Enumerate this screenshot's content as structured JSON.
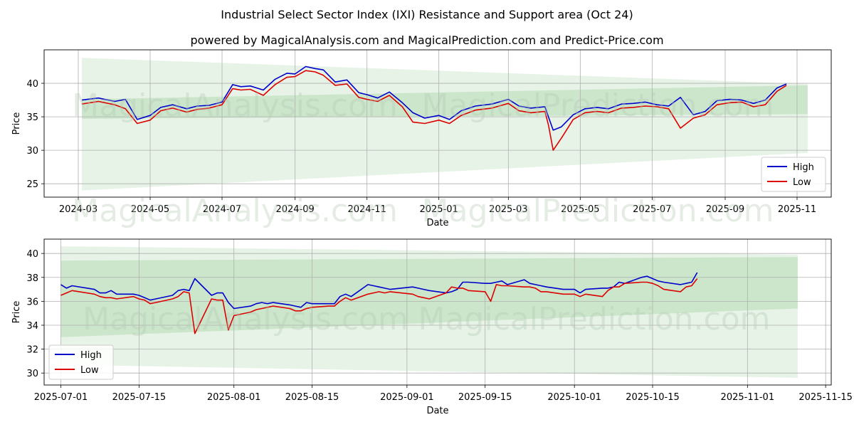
{
  "title": "Industrial Select Sector Index (IXI) Resistance and Support area (Oct 24)",
  "subtitle": "powered by MagicalAnalysis.com and MagicalPrediction.com and Predict-Price.com",
  "watermarks": [
    "MagicalAnalysis.com",
    "MagicalPrediction.com"
  ],
  "colors": {
    "high": "#0000cc",
    "low": "#dd0000",
    "band": "#2e9e2e"
  },
  "chart_data": [
    {
      "type": "line",
      "xlabel": "Date",
      "ylabel": "Price",
      "x_axis": "date",
      "xlim": [
        "2024-02-01",
        "2025-11-30"
      ],
      "ylim": [
        23,
        45
      ],
      "xticks": [
        "2024-03-01",
        "2024-05-01",
        "2024-07-01",
        "2024-09-01",
        "2024-11-01",
        "2025-01-01",
        "2025-03-01",
        "2025-05-01",
        "2025-07-01",
        "2025-09-01",
        "2025-11-01"
      ],
      "xtick_labels": [
        "2024-03",
        "2024-05",
        "2024-07",
        "2024-09",
        "2024-11",
        "2025-01",
        "2025-03",
        "2025-05",
        "2025-07",
        "2025-09",
        "2025-11"
      ],
      "yticks": [
        25,
        30,
        35,
        40
      ],
      "grid": true,
      "legend": "lower-right",
      "bands": [
        {
          "x": [
            "2024-03-04",
            "2025-11-10"
          ],
          "upper": [
            43.8,
            39.9
          ],
          "lower": [
            24.0,
            29.6
          ]
        },
        {
          "x": [
            "2024-03-04",
            "2025-11-10"
          ],
          "upper": [
            37.6,
            39.7
          ],
          "lower": [
            34.7,
            35.4
          ]
        }
      ],
      "series": [
        {
          "name": "High",
          "x": [
            "2024-03-04",
            "2024-03-18",
            "2024-04-01",
            "2024-04-10",
            "2024-04-20",
            "2024-05-01",
            "2024-05-10",
            "2024-05-20",
            "2024-06-01",
            "2024-06-10",
            "2024-06-20",
            "2024-07-01",
            "2024-07-10",
            "2024-07-17",
            "2024-07-25",
            "2024-08-05",
            "2024-08-15",
            "2024-08-25",
            "2024-09-01",
            "2024-09-10",
            "2024-09-18",
            "2024-09-25",
            "2024-10-05",
            "2024-10-15",
            "2024-10-25",
            "2024-11-01",
            "2024-11-10",
            "2024-11-20",
            "2024-12-01",
            "2024-12-10",
            "2024-12-20",
            "2025-01-01",
            "2025-01-10",
            "2025-01-20",
            "2025-02-01",
            "2025-02-15",
            "2025-03-01",
            "2025-03-10",
            "2025-03-20",
            "2025-04-01",
            "2025-04-04",
            "2025-04-08",
            "2025-04-15",
            "2025-04-25",
            "2025-05-05",
            "2025-05-15",
            "2025-05-25",
            "2025-06-05",
            "2025-06-15",
            "2025-06-25",
            "2025-07-05",
            "2025-07-15",
            "2025-07-25",
            "2025-08-05",
            "2025-08-15",
            "2025-08-25",
            "2025-09-05",
            "2025-09-15",
            "2025-09-25",
            "2025-10-05",
            "2025-10-15",
            "2025-10-23"
          ],
          "values": [
            37.5,
            37.8,
            37.3,
            37.6,
            34.6,
            35.2,
            36.4,
            36.8,
            36.2,
            36.6,
            36.7,
            37.2,
            39.8,
            39.5,
            39.6,
            39.0,
            40.6,
            41.5,
            41.4,
            42.5,
            42.2,
            42.0,
            40.2,
            40.5,
            38.6,
            38.3,
            37.8,
            38.7,
            37.1,
            35.6,
            34.8,
            35.2,
            34.6,
            35.9,
            36.6,
            36.9,
            37.6,
            36.6,
            36.3,
            36.5,
            35.0,
            33.0,
            33.5,
            35.3,
            36.2,
            36.4,
            36.2,
            36.9,
            37.0,
            37.2,
            36.8,
            36.6,
            37.9,
            35.3,
            35.8,
            37.4,
            37.6,
            37.5,
            37.0,
            37.5,
            39.3,
            39.9
          ]
        },
        {
          "name": "Low",
          "x": [
            "2024-03-04",
            "2024-03-18",
            "2024-04-01",
            "2024-04-10",
            "2024-04-20",
            "2024-05-01",
            "2024-05-10",
            "2024-05-20",
            "2024-06-01",
            "2024-06-10",
            "2024-06-20",
            "2024-07-01",
            "2024-07-10",
            "2024-07-17",
            "2024-07-25",
            "2024-08-05",
            "2024-08-15",
            "2024-08-25",
            "2024-09-01",
            "2024-09-10",
            "2024-09-18",
            "2024-09-25",
            "2024-10-05",
            "2024-10-15",
            "2024-10-25",
            "2024-11-01",
            "2024-11-10",
            "2024-11-20",
            "2024-12-01",
            "2024-12-10",
            "2024-12-20",
            "2025-01-01",
            "2025-01-10",
            "2025-01-20",
            "2025-02-01",
            "2025-02-15",
            "2025-03-01",
            "2025-03-10",
            "2025-03-20",
            "2025-04-01",
            "2025-04-04",
            "2025-04-08",
            "2025-04-15",
            "2025-04-25",
            "2025-05-05",
            "2025-05-15",
            "2025-05-25",
            "2025-06-05",
            "2025-06-15",
            "2025-06-25",
            "2025-07-05",
            "2025-07-15",
            "2025-07-25",
            "2025-08-05",
            "2025-08-15",
            "2025-08-25",
            "2025-09-05",
            "2025-09-15",
            "2025-09-25",
            "2025-10-05",
            "2025-10-15",
            "2025-10-23"
          ],
          "values": [
            36.9,
            37.3,
            36.8,
            36.2,
            34.0,
            34.5,
            35.9,
            36.3,
            35.7,
            36.1,
            36.3,
            36.8,
            39.2,
            39.0,
            39.1,
            38.2,
            39.8,
            40.9,
            41.0,
            41.9,
            41.7,
            41.2,
            39.7,
            39.9,
            37.9,
            37.6,
            37.3,
            38.2,
            36.5,
            34.2,
            34.0,
            34.5,
            34.0,
            35.2,
            36.0,
            36.3,
            37.0,
            35.9,
            35.6,
            35.8,
            33.8,
            30.0,
            31.8,
            34.6,
            35.6,
            35.8,
            35.6,
            36.3,
            36.4,
            36.6,
            36.5,
            36.2,
            33.3,
            34.8,
            35.3,
            36.8,
            37.1,
            37.2,
            36.5,
            36.8,
            38.8,
            39.7
          ]
        }
      ]
    },
    {
      "type": "line",
      "xlabel": "Date",
      "ylabel": "Price",
      "x_axis": "date",
      "xlim": [
        "2025-06-28",
        "2025-11-16"
      ],
      "ylim": [
        29.0,
        41.2
      ],
      "xticks": [
        "2025-07-01",
        "2025-07-15",
        "2025-08-01",
        "2025-08-15",
        "2025-09-01",
        "2025-09-15",
        "2025-10-01",
        "2025-10-15",
        "2025-11-01",
        "2025-11-15"
      ],
      "xtick_labels": [
        "2025-07-01",
        "2025-07-15",
        "2025-08-01",
        "2025-08-15",
        "2025-09-01",
        "2025-09-15",
        "2025-10-01",
        "2025-10-15",
        "2025-11-01",
        "2025-11-15"
      ],
      "yticks": [
        30,
        32,
        34,
        36,
        38,
        40
      ],
      "grid": true,
      "legend": "lower-left",
      "bands": [
        {
          "x": [
            "2025-07-01",
            "2025-11-10"
          ],
          "upper": [
            40.6,
            39.9
          ],
          "lower": [
            30.7,
            29.6
          ]
        },
        {
          "x": [
            "2025-07-01",
            "2025-11-10"
          ],
          "upper": [
            39.4,
            39.7
          ],
          "lower": [
            33.0,
            35.4
          ]
        }
      ],
      "series": [
        {
          "name": "High",
          "x": [
            "2025-07-01",
            "2025-07-02",
            "2025-07-03",
            "2025-07-07",
            "2025-07-08",
            "2025-07-09",
            "2025-07-10",
            "2025-07-11",
            "2025-07-14",
            "2025-07-15",
            "2025-07-16",
            "2025-07-17",
            "2025-07-18",
            "2025-07-21",
            "2025-07-22",
            "2025-07-23",
            "2025-07-24",
            "2025-07-25",
            "2025-07-28",
            "2025-07-29",
            "2025-07-30",
            "2025-07-31",
            "2025-08-01",
            "2025-08-04",
            "2025-08-05",
            "2025-08-06",
            "2025-08-07",
            "2025-08-08",
            "2025-08-11",
            "2025-08-12",
            "2025-08-13",
            "2025-08-14",
            "2025-08-15",
            "2025-08-18",
            "2025-08-19",
            "2025-08-20",
            "2025-08-21",
            "2025-08-22",
            "2025-08-25",
            "2025-08-26",
            "2025-08-27",
            "2025-08-28",
            "2025-08-29",
            "2025-09-02",
            "2025-09-03",
            "2025-09-04",
            "2025-09-05",
            "2025-09-08",
            "2025-09-09",
            "2025-09-10",
            "2025-09-11",
            "2025-09-12",
            "2025-09-15",
            "2025-09-16",
            "2025-09-17",
            "2025-09-18",
            "2025-09-19",
            "2025-09-22",
            "2025-09-23",
            "2025-09-24",
            "2025-09-25",
            "2025-09-26",
            "2025-09-29",
            "2025-09-30",
            "2025-10-01",
            "2025-10-02",
            "2025-10-03",
            "2025-10-06",
            "2025-10-07",
            "2025-10-08",
            "2025-10-09",
            "2025-10-10",
            "2025-10-13",
            "2025-10-14",
            "2025-10-15",
            "2025-10-16",
            "2025-10-17",
            "2025-10-20",
            "2025-10-21",
            "2025-10-22",
            "2025-10-23"
          ],
          "values": [
            37.4,
            37.1,
            37.3,
            37.0,
            36.7,
            36.7,
            36.9,
            36.6,
            36.6,
            36.5,
            36.3,
            36.1,
            36.2,
            36.5,
            36.9,
            37.0,
            36.9,
            37.9,
            36.5,
            36.7,
            36.7,
            35.9,
            35.4,
            35.6,
            35.8,
            35.9,
            35.8,
            35.9,
            35.7,
            35.6,
            35.5,
            35.9,
            35.8,
            35.8,
            35.8,
            36.4,
            36.6,
            36.4,
            37.4,
            37.3,
            37.2,
            37.1,
            37.0,
            37.2,
            37.1,
            37.0,
            36.9,
            36.7,
            36.8,
            37.0,
            37.6,
            37.6,
            37.5,
            37.5,
            37.6,
            37.7,
            37.4,
            37.8,
            37.5,
            37.4,
            37.3,
            37.2,
            37.0,
            37.0,
            37.0,
            36.7,
            37.0,
            37.1,
            37.1,
            37.2,
            37.6,
            37.5,
            38.0,
            38.1,
            37.9,
            37.7,
            37.6,
            37.4,
            37.5,
            37.6,
            38.4
          ]
        },
        {
          "name": "Low",
          "x": [
            "2025-07-01",
            "2025-07-02",
            "2025-07-03",
            "2025-07-07",
            "2025-07-08",
            "2025-07-09",
            "2025-07-10",
            "2025-07-11",
            "2025-07-14",
            "2025-07-15",
            "2025-07-16",
            "2025-07-17",
            "2025-07-18",
            "2025-07-21",
            "2025-07-22",
            "2025-07-23",
            "2025-07-24",
            "2025-07-25",
            "2025-07-28",
            "2025-07-29",
            "2025-07-30",
            "2025-07-31",
            "2025-08-01",
            "2025-08-04",
            "2025-08-05",
            "2025-08-06",
            "2025-08-07",
            "2025-08-08",
            "2025-08-11",
            "2025-08-12",
            "2025-08-13",
            "2025-08-14",
            "2025-08-15",
            "2025-08-18",
            "2025-08-19",
            "2025-08-20",
            "2025-08-21",
            "2025-08-22",
            "2025-08-25",
            "2025-08-26",
            "2025-08-27",
            "2025-08-28",
            "2025-08-29",
            "2025-09-02",
            "2025-09-03",
            "2025-09-04",
            "2025-09-05",
            "2025-09-08",
            "2025-09-09",
            "2025-09-10",
            "2025-09-11",
            "2025-09-12",
            "2025-09-15",
            "2025-09-16",
            "2025-09-17",
            "2025-09-18",
            "2025-09-19",
            "2025-09-22",
            "2025-09-23",
            "2025-09-24",
            "2025-09-25",
            "2025-09-26",
            "2025-09-29",
            "2025-09-30",
            "2025-10-01",
            "2025-10-02",
            "2025-10-03",
            "2025-10-06",
            "2025-10-07",
            "2025-10-08",
            "2025-10-09",
            "2025-10-10",
            "2025-10-13",
            "2025-10-14",
            "2025-10-15",
            "2025-10-16",
            "2025-10-17",
            "2025-10-20",
            "2025-10-21",
            "2025-10-22",
            "2025-10-23"
          ],
          "values": [
            36.5,
            36.7,
            36.9,
            36.6,
            36.4,
            36.3,
            36.3,
            36.2,
            36.4,
            36.2,
            36.1,
            35.8,
            35.9,
            36.2,
            36.4,
            36.8,
            36.7,
            33.3,
            36.2,
            36.1,
            36.1,
            33.6,
            34.8,
            35.1,
            35.3,
            35.4,
            35.5,
            35.6,
            35.4,
            35.2,
            35.2,
            35.4,
            35.5,
            35.6,
            35.6,
            36.0,
            36.3,
            36.1,
            36.6,
            36.7,
            36.8,
            36.7,
            36.8,
            36.6,
            36.4,
            36.3,
            36.2,
            36.7,
            37.2,
            37.1,
            37.1,
            36.9,
            36.8,
            36.0,
            37.4,
            37.3,
            37.3,
            37.2,
            37.2,
            37.1,
            36.8,
            36.8,
            36.6,
            36.6,
            36.6,
            36.4,
            36.6,
            36.4,
            36.9,
            37.2,
            37.2,
            37.5,
            37.6,
            37.6,
            37.5,
            37.3,
            37.0,
            36.8,
            37.2,
            37.3,
            37.9
          ]
        }
      ]
    }
  ]
}
